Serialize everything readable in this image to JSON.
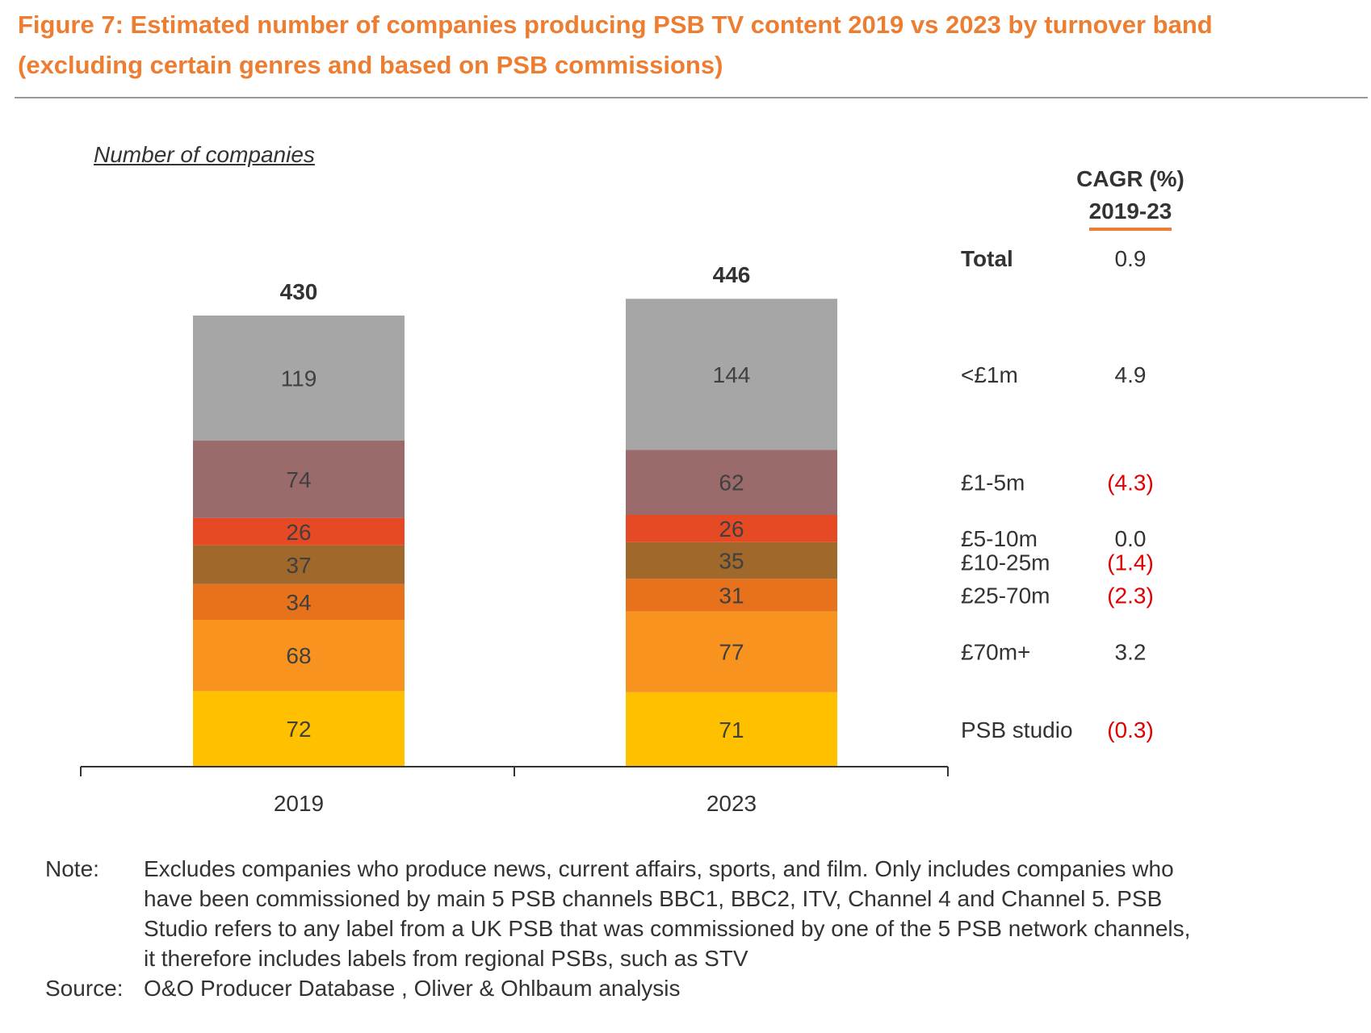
{
  "header": {
    "title": "Figure 7: Estimated number of companies producing PSB TV content 2019 vs 2023 by turnover band (excluding certain genres and based on PSB commissions)"
  },
  "cagr": {
    "heading_line1": "CAGR (%)",
    "heading_line2": "2019-23"
  },
  "chart_data": {
    "type": "bar",
    "stacked": true,
    "ylabel": "Number of companies",
    "categories": [
      "2019",
      "2023"
    ],
    "totals": [
      "430",
      "446"
    ],
    "series": [
      {
        "name": "PSB studio",
        "values": [
          72,
          71
        ],
        "color": "#FFC000",
        "cagr": "(0.3)",
        "cagr_negative": true
      },
      {
        "name": "£70m+",
        "values": [
          68,
          77
        ],
        "color": "#F7931E",
        "cagr": "3.2",
        "cagr_negative": false
      },
      {
        "name": "£25-70m",
        "values": [
          34,
          31
        ],
        "color": "#E8721C",
        "cagr": "(2.3)",
        "cagr_negative": true
      },
      {
        "name": "£10-25m",
        "values": [
          37,
          35
        ],
        "color": "#A0682A",
        "cagr": "(1.4)",
        "cagr_negative": true
      },
      {
        "name": "£5-10m",
        "values": [
          26,
          26
        ],
        "color": "#E64A24",
        "cagr": "0.0",
        "cagr_negative": false
      },
      {
        "name": "£1-5m",
        "values": [
          74,
          62
        ],
        "color": "#9B6B6B",
        "cagr": "(4.3)",
        "cagr_negative": true
      },
      {
        "name": "<£1m",
        "values": [
          119,
          144
        ],
        "color": "#A6A6A6",
        "cagr": "4.9",
        "cagr_negative": false
      }
    ],
    "total_row": {
      "name": "Total",
      "cagr": "0.9"
    },
    "legend": "right",
    "grid": false
  },
  "footer": {
    "note_label": "Note:",
    "note_text": "Excludes companies who produce news, current affairs, sports, and film. Only includes companies who have been commissioned by main 5 PSB channels BBC1, BBC2, ITV, Channel 4 and Channel 5. PSB Studio refers to any label from a UK PSB that was commissioned by one of the 5 PSB network channels, it therefore includes labels from regional PSBs, such as STV",
    "source_label": "Source:",
    "source_text": "O&O Producer Database , Oliver & Ohlbaum analysis"
  }
}
